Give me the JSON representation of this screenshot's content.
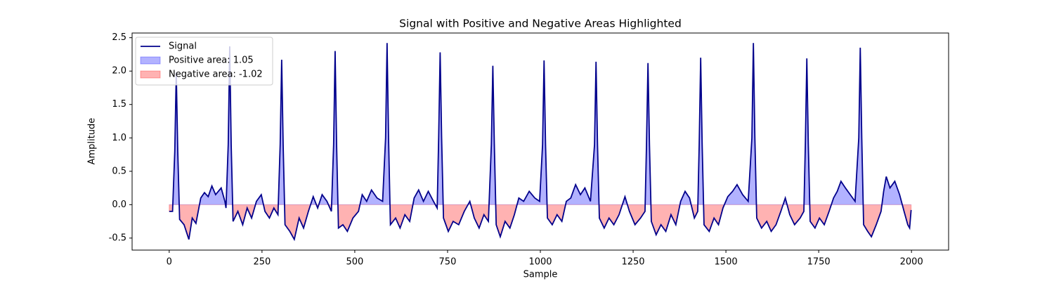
{
  "chart_data": {
    "type": "line",
    "title": "Signal with Positive and Negative Areas Highlighted",
    "xlabel": "Sample",
    "ylabel": "Amplitude",
    "x": [
      0,
      9,
      15,
      19,
      23,
      28,
      40,
      53,
      62,
      72,
      85,
      95,
      105,
      115,
      125,
      140,
      150,
      153,
      159,
      163,
      167,
      172,
      185,
      198,
      210,
      222,
      235,
      248,
      258,
      270,
      282,
      293,
      299,
      303,
      307,
      312,
      325,
      337,
      350,
      362,
      375,
      388,
      400,
      412,
      425,
      437,
      443,
      447,
      451,
      456,
      468,
      480,
      495,
      510,
      520,
      532,
      545,
      560,
      575,
      583,
      587,
      591,
      596,
      610,
      622,
      635,
      648,
      660,
      672,
      685,
      698,
      712,
      722,
      726,
      730,
      734,
      739,
      752,
      765,
      780,
      795,
      810,
      822,
      835,
      848,
      860,
      868,
      872,
      876,
      881,
      892,
      905,
      918,
      930,
      942,
      955,
      970,
      985,
      998,
      1006,
      1010,
      1014,
      1019,
      1032,
      1045,
      1058,
      1070,
      1082,
      1095,
      1108,
      1120,
      1135,
      1146,
      1150,
      1154,
      1159,
      1172,
      1185,
      1198,
      1212,
      1228,
      1240,
      1255,
      1270,
      1282,
      1286,
      1290,
      1294,
      1299,
      1312,
      1325,
      1338,
      1352,
      1365,
      1378,
      1390,
      1402,
      1415,
      1424,
      1428,
      1432,
      1436,
      1441,
      1455,
      1468,
      1480,
      1492,
      1505,
      1518,
      1530,
      1545,
      1560,
      1570,
      1574,
      1578,
      1583,
      1596,
      1610,
      1622,
      1635,
      1648,
      1660,
      1672,
      1685,
      1700,
      1710,
      1714,
      1718,
      1722,
      1727,
      1740,
      1752,
      1765,
      1778,
      1790,
      1800,
      1810,
      1822,
      1835,
      1848,
      1858,
      1862,
      1866,
      1871,
      1882,
      1892,
      1905,
      1918,
      1925,
      1932,
      1942,
      1955,
      1968,
      1980,
      1990,
      1995,
      1999
    ],
    "series": [
      {
        "name": "Signal",
        "color": "#00008b",
        "values": [
          -0.1,
          -0.1,
          0.8,
          1.98,
          0.8,
          -0.22,
          -0.3,
          -0.52,
          -0.2,
          -0.28,
          0.1,
          0.18,
          0.12,
          0.28,
          0.15,
          0.25,
          0.05,
          -0.05,
          0.9,
          2.37,
          0.9,
          -0.25,
          -0.1,
          -0.3,
          -0.05,
          -0.2,
          0.05,
          0.15,
          -0.1,
          -0.2,
          -0.05,
          -0.15,
          0.9,
          2.17,
          0.9,
          -0.3,
          -0.4,
          -0.52,
          -0.2,
          -0.35,
          -0.1,
          0.12,
          -0.05,
          0.15,
          0.05,
          -0.1,
          0.9,
          2.3,
          0.9,
          -0.35,
          -0.3,
          -0.4,
          -0.2,
          -0.1,
          0.15,
          0.05,
          0.22,
          0.1,
          0.05,
          1.0,
          2.42,
          1.0,
          -0.3,
          -0.2,
          -0.35,
          -0.15,
          -0.25,
          0.1,
          0.22,
          0.05,
          0.2,
          0.05,
          -0.05,
          1.0,
          2.28,
          1.0,
          -0.2,
          -0.4,
          -0.25,
          -0.3,
          -0.1,
          0.05,
          -0.2,
          -0.35,
          -0.15,
          -0.25,
          0.9,
          2.08,
          0.9,
          -0.3,
          -0.48,
          -0.25,
          -0.35,
          -0.15,
          0.1,
          0.05,
          0.2,
          0.1,
          0.05,
          0.9,
          2.16,
          0.9,
          -0.2,
          -0.3,
          -0.15,
          -0.25,
          0.05,
          0.1,
          0.3,
          0.15,
          0.25,
          0.05,
          0.9,
          2.14,
          0.9,
          -0.2,
          -0.35,
          -0.2,
          -0.3,
          -0.15,
          0.12,
          -0.1,
          -0.3,
          -0.2,
          -0.1,
          0.9,
          2.12,
          0.9,
          -0.25,
          -0.45,
          -0.3,
          -0.4,
          -0.15,
          -0.3,
          0.05,
          0.2,
          0.1,
          -0.2,
          -0.1,
          0.9,
          2.2,
          0.9,
          -0.3,
          -0.4,
          -0.2,
          -0.3,
          -0.05,
          0.12,
          0.2,
          0.3,
          0.15,
          0.05,
          1.0,
          2.42,
          1.0,
          -0.2,
          -0.35,
          -0.25,
          -0.4,
          -0.3,
          -0.1,
          0.1,
          -0.15,
          -0.3,
          -0.2,
          -0.1,
          0.9,
          2.19,
          0.9,
          -0.25,
          -0.35,
          -0.2,
          -0.3,
          -0.1,
          0.1,
          0.2,
          0.35,
          0.25,
          0.15,
          0.05,
          1.0,
          2.35,
          1.0,
          -0.3,
          -0.4,
          -0.48,
          -0.3,
          -0.1,
          0.2,
          0.42,
          0.25,
          0.35,
          0.15,
          -0.1,
          -0.3,
          -0.35,
          -0.08
        ]
      }
    ],
    "areas": [
      {
        "label": "Positive area: 1.05",
        "color": "#0000ff",
        "side": "positive"
      },
      {
        "label": "Negative area: -1.02",
        "color": "#ff0000",
        "side": "negative"
      }
    ],
    "xlim": [
      -100,
      2100
    ],
    "xticks": [
      0,
      250,
      500,
      750,
      1000,
      1250,
      1500,
      1750,
      2000
    ],
    "ylim": [
      -0.68,
      2.57
    ],
    "yticks": [
      -0.5,
      {
        "value": 0,
        "label": "0.0"
      },
      0.5,
      {
        "value": 1,
        "label": "1.0"
      },
      1.5,
      {
        "value": 2,
        "label": "2.0"
      },
      2.5
    ],
    "grid": false,
    "legend": "upper left"
  }
}
